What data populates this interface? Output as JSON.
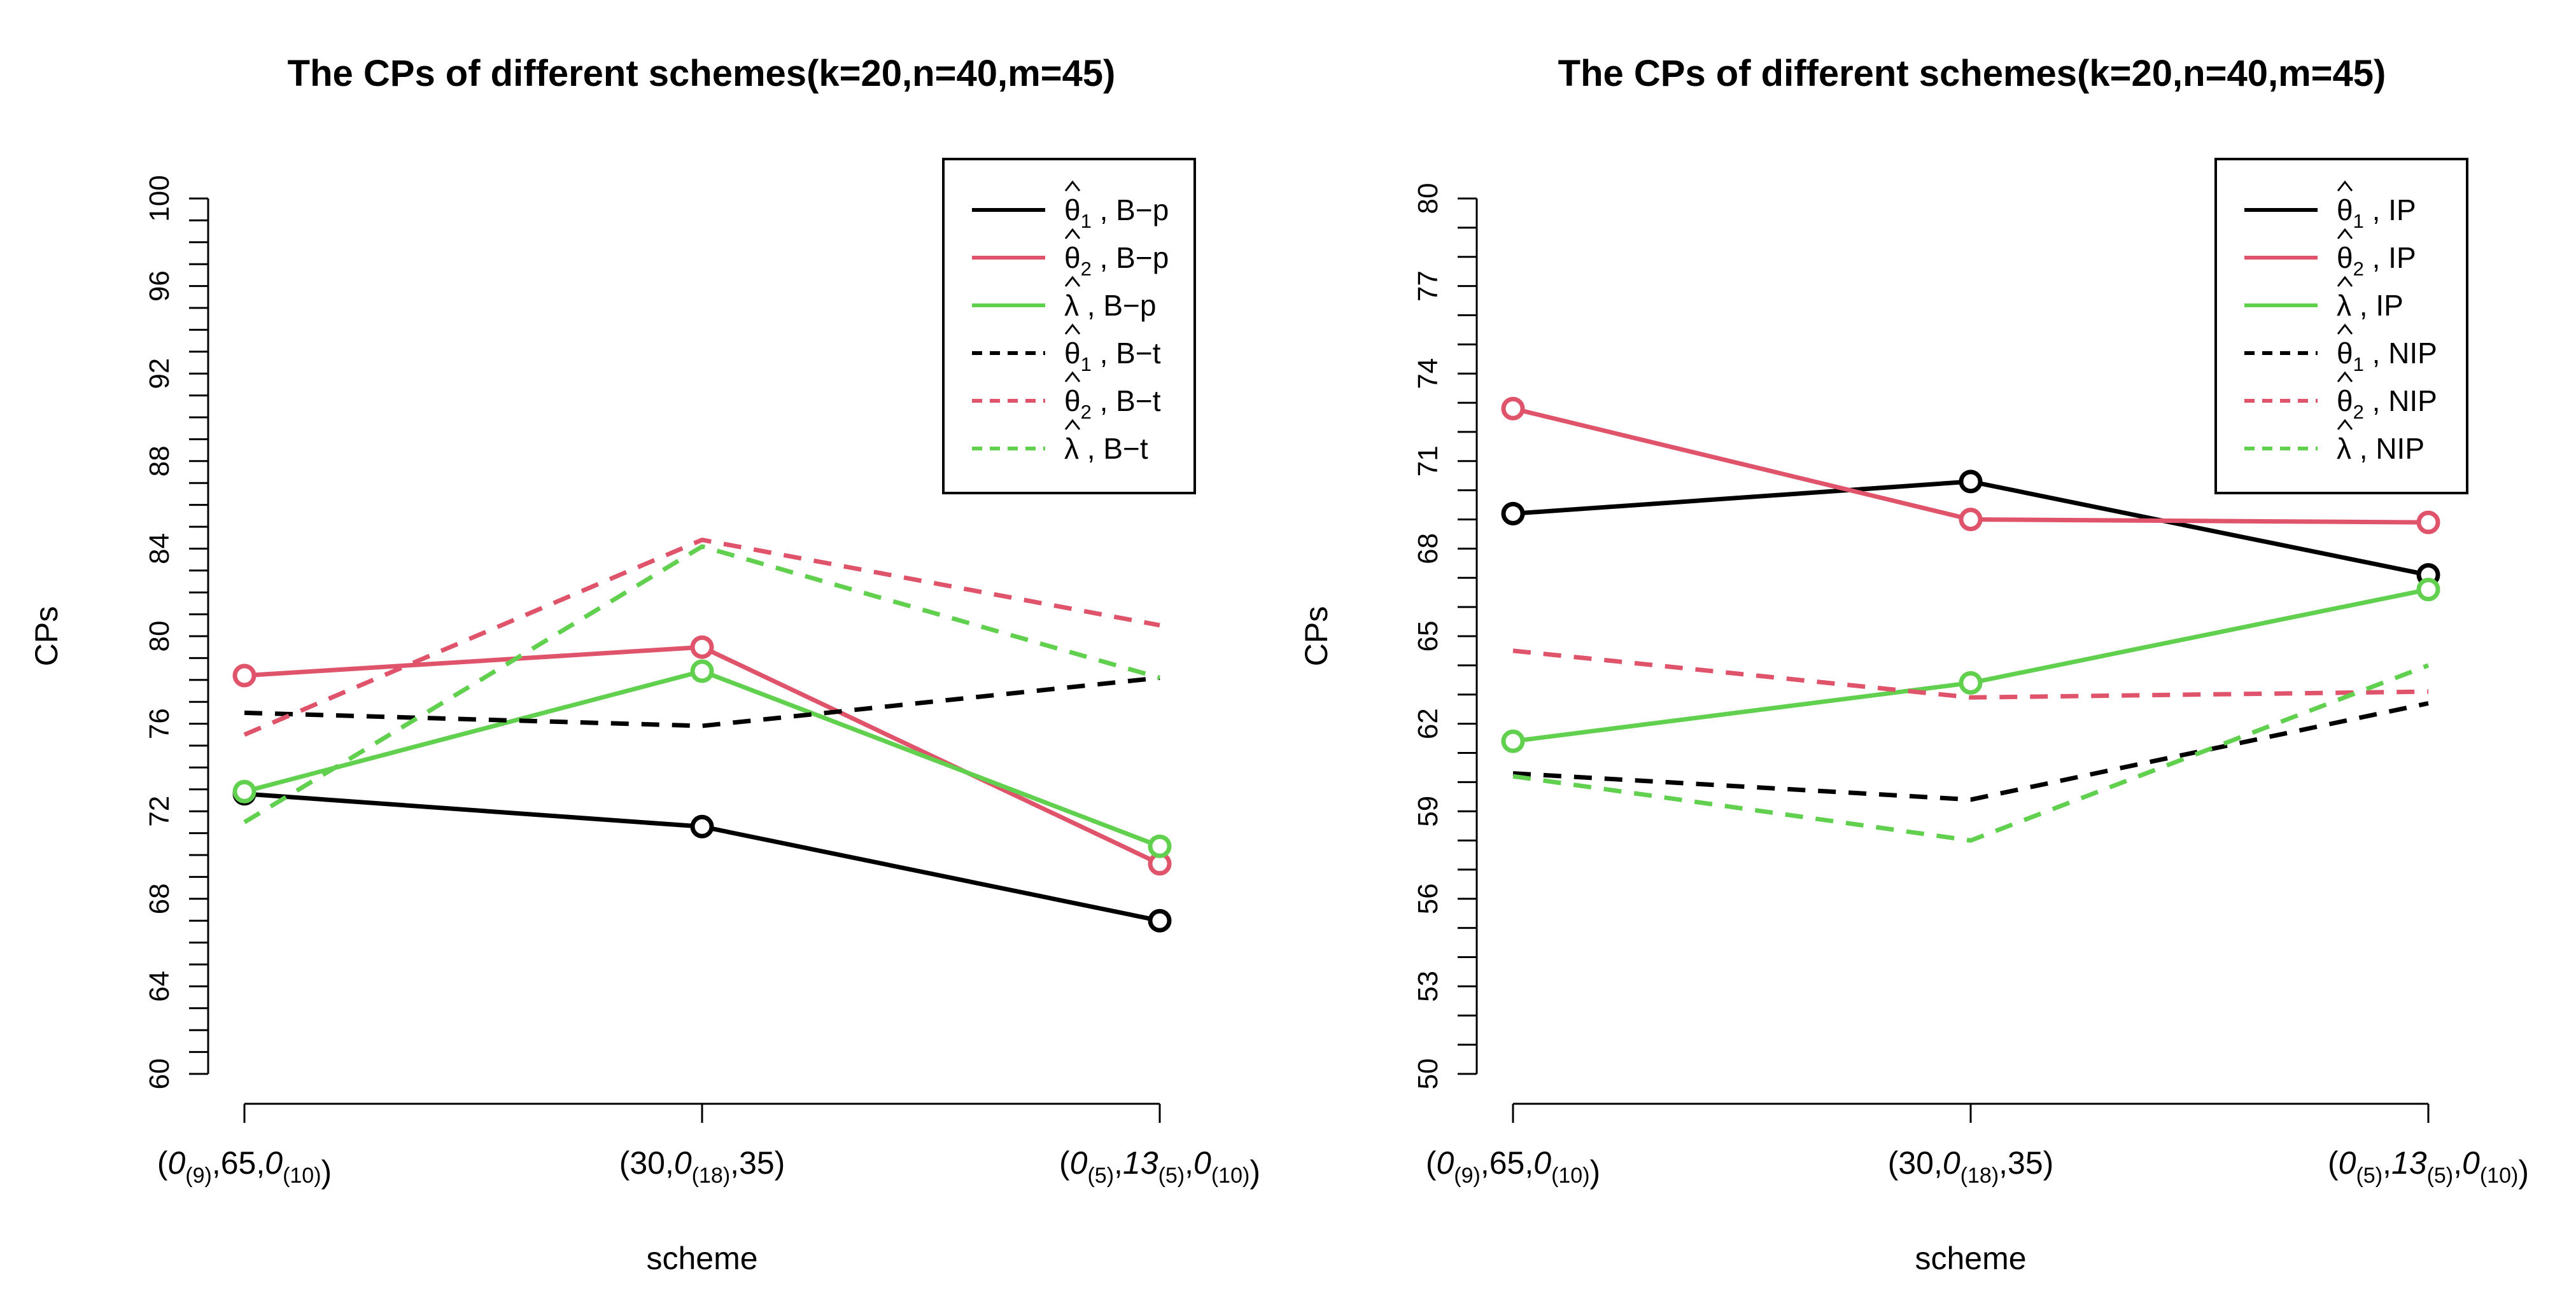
{
  "colors": {
    "black": "#000000",
    "red": "#DF536B",
    "green": "#61D04F"
  },
  "chart_data": [
    {
      "type": "line",
      "title": "The CPs of different schemes(k=20,n=40,m=45)",
      "xlabel": "scheme",
      "ylabel": "CPs",
      "ylim": [
        60,
        100
      ],
      "yticks": [
        "60",
        "64",
        "68",
        "72",
        "76",
        "80",
        "84",
        "88",
        "92",
        "96",
        "100"
      ],
      "minor_step": 1,
      "categories": [
        {
          "pre": "(",
          "a": "0",
          "as": "(9)",
          "mid": ",65,",
          "b": "0",
          "bs": "(10)",
          "post": ")"
        },
        {
          "pre": "(30,",
          "a": "0",
          "as": "(18)",
          "mid": ",35)",
          "b": "",
          "bs": "",
          "post": ""
        },
        {
          "pre": "(",
          "a": "0",
          "as": "(5)",
          "mid": ",",
          "b": "13",
          "bs": "(5)",
          "mid2": ",",
          "c": "0",
          "cs": "(10)",
          "post": ")"
        }
      ],
      "legend_position": "top-right",
      "series": [
        {
          "sym": "θ",
          "sub": "1",
          "method": "B−p",
          "color": "black",
          "dash": false,
          "markers": true,
          "values": [
            72.8,
            71.3,
            67.0
          ]
        },
        {
          "sym": "θ",
          "sub": "2",
          "method": "B−p",
          "color": "red",
          "dash": false,
          "markers": true,
          "values": [
            78.2,
            79.5,
            69.6
          ]
        },
        {
          "sym": "λ",
          "sub": "",
          "method": "B−p",
          "color": "green",
          "dash": false,
          "markers": true,
          "values": [
            72.9,
            78.4,
            70.4
          ]
        },
        {
          "sym": "θ",
          "sub": "1",
          "method": "B−t",
          "color": "black",
          "dash": true,
          "markers": false,
          "values": [
            76.5,
            75.9,
            78.1
          ]
        },
        {
          "sym": "θ",
          "sub": "2",
          "method": "B−t",
          "color": "red",
          "dash": true,
          "markers": false,
          "values": [
            75.5,
            84.4,
            80.5
          ]
        },
        {
          "sym": "λ",
          "sub": "",
          "method": "B−t",
          "color": "green",
          "dash": true,
          "markers": false,
          "values": [
            71.5,
            84.1,
            78.1
          ]
        }
      ]
    },
    {
      "type": "line",
      "title": "The CPs of different schemes(k=20,n=40,m=45)",
      "xlabel": "scheme",
      "ylabel": "CPs",
      "ylim": [
        50,
        80
      ],
      "yticks": [
        "50",
        "53",
        "56",
        "59",
        "62",
        "65",
        "68",
        "71",
        "74",
        "77",
        "80"
      ],
      "minor_step": 1,
      "categories": [
        {
          "pre": "(",
          "a": "0",
          "as": "(9)",
          "mid": ",65,",
          "b": "0",
          "bs": "(10)",
          "post": ")"
        },
        {
          "pre": "(30,",
          "a": "0",
          "as": "(18)",
          "mid": ",35)",
          "b": "",
          "bs": "",
          "post": ""
        },
        {
          "pre": "(",
          "a": "0",
          "as": "(5)",
          "mid": ",",
          "b": "13",
          "bs": "(5)",
          "mid2": ",",
          "c": "0",
          "cs": "(10)",
          "post": ")"
        }
      ],
      "legend_position": "top-right",
      "series": [
        {
          "sym": "θ",
          "sub": "1",
          "method": "IP",
          "color": "black",
          "dash": false,
          "markers": true,
          "values": [
            69.2,
            70.3,
            67.1
          ]
        },
        {
          "sym": "θ",
          "sub": "2",
          "method": "IP",
          "color": "red",
          "dash": false,
          "markers": true,
          "values": [
            72.8,
            69.0,
            68.9
          ]
        },
        {
          "sym": "λ",
          "sub": "",
          "method": "IP",
          "color": "green",
          "dash": false,
          "markers": true,
          "values": [
            61.4,
            63.4,
            66.6
          ]
        },
        {
          "sym": "θ",
          "sub": "1",
          "method": "NIP",
          "color": "black",
          "dash": true,
          "markers": false,
          "values": [
            60.3,
            59.4,
            62.7
          ]
        },
        {
          "sym": "θ",
          "sub": "2",
          "method": "NIP",
          "color": "red",
          "dash": true,
          "markers": false,
          "values": [
            64.5,
            62.9,
            63.1
          ]
        },
        {
          "sym": "λ",
          "sub": "",
          "method": "NIP",
          "color": "green",
          "dash": true,
          "markers": false,
          "values": [
            60.2,
            58.0,
            64.0
          ]
        }
      ]
    }
  ]
}
